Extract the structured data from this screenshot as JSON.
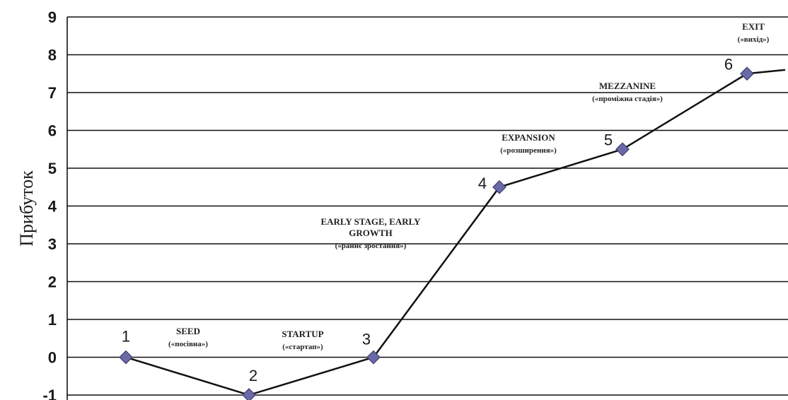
{
  "chart_data": {
    "type": "line",
    "ylabel": "Прибуток",
    "ylim": [
      -1,
      9
    ],
    "y_ticks": [
      "-1",
      "0",
      "1",
      "2",
      "3",
      "4",
      "5",
      "6",
      "7",
      "8",
      "9"
    ],
    "grid": "horizontal",
    "series": [
      {
        "x": [
          1,
          2,
          3,
          4,
          5,
          6,
          7
        ],
        "values": [
          0,
          -1,
          0,
          4.5,
          5.5,
          7.5,
          7.6
        ],
        "point_labels": [
          "1",
          "2",
          "3",
          "4",
          "5",
          "6",
          ""
        ]
      }
    ],
    "stages": [
      {
        "title": "SEED",
        "subtitle": "(«посівна»)"
      },
      {
        "title": "STARTUP",
        "subtitle": "(«стартап»)"
      },
      {
        "title": "EARLY STAGE, EARLY",
        "title2": "GROWTH",
        "subtitle": "(«раннє зростання»)"
      },
      {
        "title": "EXPANSION",
        "subtitle": "(«розширення»)"
      },
      {
        "title": "MEZZANINE",
        "subtitle": "(«проміжна стадія»)"
      },
      {
        "title": "EXIT",
        "subtitle": "(«вихід»)"
      }
    ],
    "colors": {
      "line": "#111111",
      "marker": "#6b6aa8",
      "marker_stroke": "#3a3a6a",
      "grid": "#111111"
    }
  }
}
